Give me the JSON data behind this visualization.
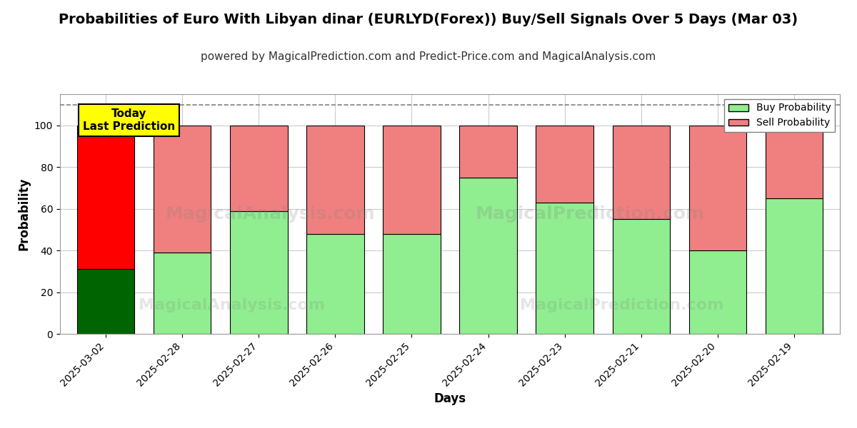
{
  "title": "Probabilities of Euro With Libyan dinar (EURLYD(Forex)) Buy/Sell Signals Over 5 Days (Mar 03)",
  "subtitle": "powered by MagicalPrediction.com and Predict-Price.com and MagicalAnalysis.com",
  "xlabel": "Days",
  "ylabel": "Probability",
  "dates": [
    "2025-03-02",
    "2025-02-28",
    "2025-02-27",
    "2025-02-26",
    "2025-02-25",
    "2025-02-24",
    "2025-02-23",
    "2025-02-21",
    "2025-02-20",
    "2025-02-19"
  ],
  "buy_values": [
    31,
    39,
    59,
    48,
    48,
    75,
    63,
    55,
    40,
    65
  ],
  "sell_values": [
    69,
    61,
    41,
    52,
    52,
    25,
    37,
    45,
    60,
    35
  ],
  "buy_color_today": "#006400",
  "sell_color_today": "#ff0000",
  "buy_color_normal": "#90EE90",
  "sell_color_normal": "#F08080",
  "bar_edge_color": "#000000",
  "ylim": [
    0,
    115
  ],
  "yticks": [
    0,
    20,
    40,
    60,
    80,
    100
  ],
  "dashed_line_y": 110,
  "legend_labels": [
    "Buy Probability",
    "Sell Probability"
  ],
  "watermark_text1": "MagicalAnalysis.com",
  "watermark_text2": "MagicalPrediction.com",
  "today_box_text": "Today\nLast Prediction",
  "today_box_color": "#ffff00",
  "title_fontsize": 14,
  "subtitle_fontsize": 11,
  "axis_label_fontsize": 12,
  "tick_fontsize": 10,
  "background_color": "#ffffff",
  "grid_color": "#cccccc"
}
